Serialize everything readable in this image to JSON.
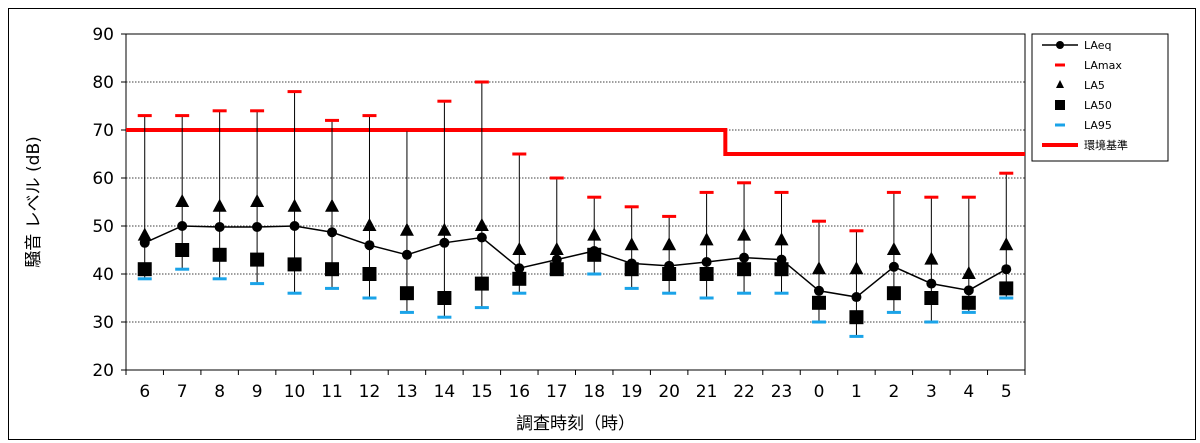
{
  "chart_data": {
    "type": "line",
    "xlabel": "調査時刻（時）",
    "ylabel": "騒音 レベル (dB)",
    "categories": [
      "6",
      "7",
      "8",
      "9",
      "10",
      "11",
      "12",
      "13",
      "14",
      "15",
      "16",
      "17",
      "18",
      "19",
      "20",
      "21",
      "22",
      "23",
      "0",
      "1",
      "2",
      "3",
      "4",
      "5"
    ],
    "ylim": [
      20,
      90
    ],
    "yticks": [
      20,
      30,
      40,
      50,
      60,
      70,
      80,
      90
    ],
    "grid": "horizontal dotted",
    "legend_position": "top-right",
    "series": [
      {
        "name": "LAeq",
        "marker": "circle",
        "color": "#000000",
        "values": [
          46.5,
          50,
          49.8,
          49.8,
          50,
          48.7,
          46,
          44,
          46.5,
          47.6,
          41.2,
          43,
          44.8,
          42.2,
          41.7,
          42.5,
          43.4,
          43,
          36.5,
          35.2,
          41.5,
          38,
          36.6,
          41
        ]
      },
      {
        "name": "LAmax",
        "marker": "dash",
        "color": "#ff0000",
        "values": [
          73,
          73,
          74,
          74,
          78,
          72,
          73,
          70,
          76,
          80,
          65,
          60,
          56,
          54,
          52,
          57,
          59,
          57,
          51,
          49,
          57,
          56,
          56,
          61
        ]
      },
      {
        "name": "LA5",
        "marker": "triangle",
        "color": "#000000",
        "values": [
          48,
          55,
          54,
          55,
          54,
          54,
          50,
          49,
          49,
          50,
          45,
          45,
          48,
          46,
          46,
          47,
          48,
          47,
          41,
          41,
          45,
          43,
          40,
          46
        ]
      },
      {
        "name": "LA50",
        "marker": "square",
        "color": "#000000",
        "values": [
          41,
          45,
          44,
          43,
          42,
          41,
          40,
          36,
          35,
          38,
          39,
          41,
          44,
          41,
          40,
          40,
          41,
          41,
          34,
          31,
          36,
          35,
          34,
          37
        ]
      },
      {
        "name": "LA95",
        "marker": "dash",
        "color": "#1aa3e8",
        "values": [
          39,
          41,
          39,
          38,
          36,
          37,
          35,
          32,
          31,
          33,
          36,
          40,
          40,
          37,
          36,
          35,
          36,
          36,
          30,
          27,
          32,
          30,
          32,
          35
        ]
      },
      {
        "name": "環境基準",
        "marker": "none",
        "color": "#ff0000",
        "values": [
          70,
          70,
          70,
          70,
          70,
          70,
          70,
          70,
          70,
          70,
          70,
          70,
          70,
          70,
          70,
          70,
          65,
          65,
          65,
          65,
          65,
          65,
          65,
          65
        ]
      }
    ]
  }
}
